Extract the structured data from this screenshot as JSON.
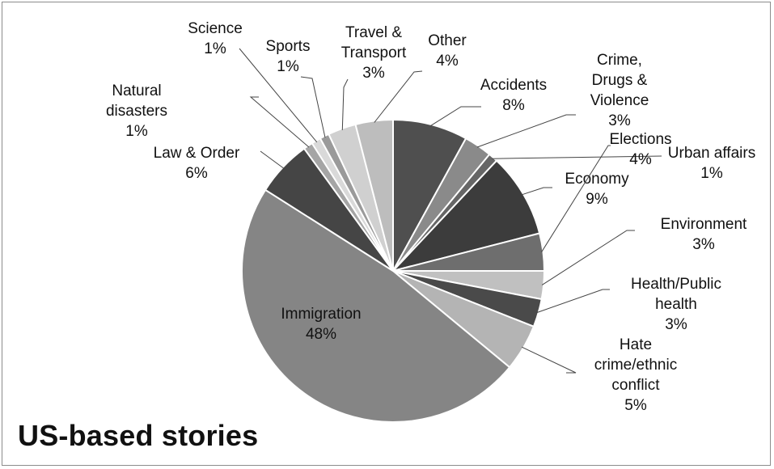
{
  "chart_data": {
    "type": "pie",
    "title": "US-based stories",
    "slices": [
      {
        "name": "Accidents",
        "value": 8,
        "label_lines": [
          "Accidents"
        ],
        "value_label": "8%",
        "color": "#4f4f4f"
      },
      {
        "name": "Crime, Drugs & Violence",
        "value": 3,
        "label_lines": [
          "Crime,",
          "Drugs &",
          "Violence"
        ],
        "value_label": "3%",
        "color": "#8a8a8a"
      },
      {
        "name": "Urban affairs",
        "value": 1,
        "label_lines": [
          "Urban affairs"
        ],
        "value_label": "1%",
        "color": "#666666"
      },
      {
        "name": "Economy",
        "value": 9,
        "label_lines": [
          "Economy"
        ],
        "value_label": "9%",
        "color": "#3c3c3c"
      },
      {
        "name": "Elections",
        "value": 4,
        "label_lines": [
          "Elections"
        ],
        "value_label": "4%",
        "color": "#6e6e6e"
      },
      {
        "name": "Environment",
        "value": 3,
        "label_lines": [
          "Environment"
        ],
        "value_label": "3%",
        "color": "#c0c0c0"
      },
      {
        "name": "Health/Public health",
        "value": 3,
        "label_lines": [
          "Health/Public",
          "health"
        ],
        "value_label": "3%",
        "color": "#4a4a4a"
      },
      {
        "name": "Hate crime/ethnic conflict",
        "value": 5,
        "label_lines": [
          "Hate",
          "crime/ethnic",
          "conflict"
        ],
        "value_label": "5%",
        "color": "#b4b4b4"
      },
      {
        "name": "Immigration",
        "value": 48,
        "label_lines": [
          "Immigration"
        ],
        "value_label": "48%",
        "color": "#858585"
      },
      {
        "name": "Law & Order",
        "value": 6,
        "label_lines": [
          "Law & Order"
        ],
        "value_label": "6%",
        "color": "#454545"
      },
      {
        "name": "Natural disasters",
        "value": 1,
        "label_lines": [
          "Natural",
          "disasters"
        ],
        "value_label": "1%",
        "color": "#a5a5a5"
      },
      {
        "name": "Science",
        "value": 1,
        "label_lines": [
          "Science"
        ],
        "value_label": "1%",
        "color": "#d9d9d9"
      },
      {
        "name": "Sports",
        "value": 1,
        "label_lines": [
          "Sports"
        ],
        "value_label": "1%",
        "color": "#9a9a9a"
      },
      {
        "name": "Travel & Transport",
        "value": 3,
        "label_lines": [
          "Travel &",
          "Transport"
        ],
        "value_label": "3%",
        "color": "#d0d0d0"
      },
      {
        "name": "Other",
        "value": 4,
        "label_lines": [
          "Other"
        ],
        "value_label": "4%",
        "color": "#bdbdbd"
      }
    ]
  }
}
